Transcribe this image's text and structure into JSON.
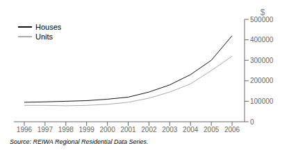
{
  "chart_data": {
    "type": "line",
    "x": [
      1996,
      1997,
      1998,
      1999,
      2000,
      2001,
      2002,
      2003,
      2004,
      2005,
      2006
    ],
    "series": [
      {
        "name": "Houses",
        "color": "#111111",
        "values": [
          95000,
          97000,
          100000,
          103000,
          110000,
          120000,
          145000,
          180000,
          230000,
          300000,
          420000
        ]
      },
      {
        "name": "Units",
        "color": "#aaaaaa",
        "values": [
          80000,
          80000,
          78000,
          80000,
          85000,
          95000,
          115000,
          145000,
          185000,
          250000,
          320000
        ]
      }
    ],
    "xlim": [
      1995.5,
      2006.6
    ],
    "xticks": [
      1996,
      1997,
      1998,
      1999,
      2000,
      2001,
      2002,
      2003,
      2004,
      2005,
      2006
    ],
    "ylim": [
      0,
      500000
    ],
    "yticks": [
      0,
      100000,
      200000,
      300000,
      400000,
      500000
    ],
    "ylabel": "$",
    "annotations": [
      "Source: REIWA Regional Residential Data Series."
    ],
    "legend": "upper left",
    "grid": false
  }
}
